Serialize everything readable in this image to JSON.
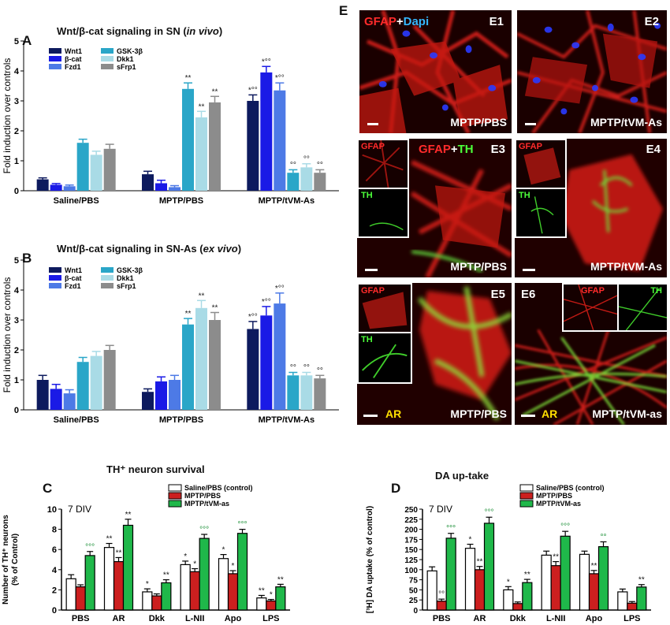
{
  "panels": {
    "A": {
      "letter": "A",
      "title": "Wnt/β-cat signaling in SN (in vivo)",
      "title_main": "Wnt/β-cat signaling in SN (",
      "title_italic": "in vivo",
      "title_end": ")"
    },
    "B": {
      "letter": "B",
      "title_main": "Wnt/β-cat signaling in SN-As (",
      "title_italic": "ex vivo",
      "title_end": ")"
    },
    "C": {
      "letter": "C",
      "title": "TH⁺ neuron survival"
    },
    "D": {
      "letter": "D",
      "title": "DA up-take"
    },
    "E": {
      "letter": "E"
    }
  },
  "colors": {
    "wnt1": "#0d1a5e",
    "bcat": "#1a1ae6",
    "fzd1": "#4d7ae6",
    "gsk3b": "#2aa6c8",
    "dkk1": "#a9dbe6",
    "sfrp1": "#8c8c8c",
    "saline": "#ffffff",
    "mptp_pbs": "#cc1f1f",
    "mptp_tvm": "#1fb84a"
  },
  "chart_data": [
    {
      "id": "A",
      "type": "bar",
      "title": "Wnt/β-cat signaling in SN (in vivo)",
      "ylabel": "Fold induction over controls",
      "ylim": [
        0,
        5
      ],
      "yticks": [
        "0",
        "1",
        "2",
        "3",
        "4",
        "5"
      ],
      "categories": [
        "Saline/PBS",
        "MPTP/PBS",
        "MPTP/tVM-As"
      ],
      "legend": [
        "Wnt1",
        "β-cat",
        "Fzd1",
        "GSK-3β",
        "Dkk1",
        "sFrp1"
      ],
      "series": [
        {
          "name": "Wnt1",
          "values": [
            0.38,
            0.55,
            3.0
          ],
          "errors": [
            0.05,
            0.1,
            0.2
          ],
          "annotations": [
            "",
            "",
            "*°°"
          ]
        },
        {
          "name": "β-cat",
          "values": [
            0.2,
            0.25,
            3.95
          ],
          "errors": [
            0.04,
            0.1,
            0.2
          ],
          "annotations": [
            "",
            "",
            "*°°"
          ]
        },
        {
          "name": "Fzd1",
          "values": [
            0.15,
            0.12,
            3.35
          ],
          "errors": [
            0.04,
            0.05,
            0.25
          ],
          "annotations": [
            "",
            "",
            "*°°"
          ]
        },
        {
          "name": "GSK-3β",
          "values": [
            1.6,
            3.4,
            0.6
          ],
          "errors": [
            0.12,
            0.2,
            0.1
          ],
          "annotations": [
            "",
            "**",
            "°°"
          ]
        },
        {
          "name": "Dkk1",
          "values": [
            1.2,
            2.45,
            0.78
          ],
          "errors": [
            0.12,
            0.2,
            0.12
          ],
          "annotations": [
            "",
            "**",
            "°°"
          ]
        },
        {
          "name": "sFrp1",
          "values": [
            1.4,
            2.95,
            0.6
          ],
          "errors": [
            0.15,
            0.2,
            0.1
          ],
          "annotations": [
            "",
            "**",
            "°°"
          ]
        }
      ]
    },
    {
      "id": "B",
      "type": "bar",
      "title": "Wnt/β-cat signaling in SN-As (ex vivo)",
      "ylabel": "Fold induction over controls",
      "ylim": [
        0,
        5
      ],
      "yticks": [
        "0",
        "1",
        "2",
        "3",
        "4",
        "5"
      ],
      "categories": [
        "Saline/PBS",
        "MPTP/PBS",
        "MPTP/tVM-As"
      ],
      "legend": [
        "Wnt1",
        "β-cat",
        "Fzd1",
        "GSK-3β",
        "Dkk1",
        "sFrp1"
      ],
      "series": [
        {
          "name": "Wnt1",
          "values": [
            1.0,
            0.6,
            2.7
          ],
          "errors": [
            0.15,
            0.1,
            0.25
          ],
          "annotations": [
            "",
            "",
            "*°°"
          ]
        },
        {
          "name": "β-cat",
          "values": [
            0.7,
            0.95,
            3.15
          ],
          "errors": [
            0.15,
            0.15,
            0.3
          ],
          "annotations": [
            "",
            "",
            "*°°"
          ]
        },
        {
          "name": "Fzd1",
          "values": [
            0.55,
            1.0,
            3.55
          ],
          "errors": [
            0.12,
            0.15,
            0.35
          ],
          "annotations": [
            "",
            "",
            "*°°"
          ]
        },
        {
          "name": "GSK-3β",
          "values": [
            1.6,
            2.85,
            1.15
          ],
          "errors": [
            0.15,
            0.2,
            0.1
          ],
          "annotations": [
            "",
            "**",
            "°°"
          ]
        },
        {
          "name": "Dkk1",
          "values": [
            1.8,
            3.4,
            1.15
          ],
          "errors": [
            0.15,
            0.25,
            0.1
          ],
          "annotations": [
            "",
            "**",
            "°°"
          ]
        },
        {
          "name": "sFrp1",
          "values": [
            2.0,
            3.0,
            1.05
          ],
          "errors": [
            0.15,
            0.25,
            0.1
          ],
          "annotations": [
            "",
            "**",
            "°°"
          ]
        }
      ]
    },
    {
      "id": "C",
      "type": "bar",
      "title": "TH⁺ neuron survival",
      "ylabel": "Number of TH⁺ neurons (% of Control)",
      "ylabel_line1": "Number of TH⁺ neurons",
      "ylabel_line2": "(% of Control)",
      "ylim": [
        0,
        10
      ],
      "yticks": [
        "0",
        "2",
        "4",
        "6",
        "8",
        "10"
      ],
      "annotation_text": "7 DIV",
      "categories": [
        "PBS",
        "AR",
        "Dkk",
        "L-NII",
        "Apo",
        "LPS"
      ],
      "legend": [
        "Saline/PBS (control)",
        "MPTP/PBS",
        "MPTP/tVM-as"
      ],
      "series": [
        {
          "name": "Saline/PBS (control)",
          "values": [
            3.1,
            6.2,
            1.8,
            4.5,
            5.1,
            1.2
          ],
          "errors": [
            0.4,
            0.4,
            0.3,
            0.35,
            0.4,
            0.25
          ],
          "annotations": [
            "",
            "**",
            "*",
            "*",
            "*",
            "**"
          ]
        },
        {
          "name": "MPTP/PBS",
          "values": [
            2.3,
            4.8,
            1.4,
            3.8,
            3.6,
            0.9
          ],
          "errors": [
            0.2,
            0.4,
            0.2,
            0.3,
            0.3,
            0.15
          ],
          "annotations": [
            "",
            "**",
            "",
            "*",
            "*",
            "*"
          ]
        },
        {
          "name": "MPTP/tVM-as",
          "values": [
            5.4,
            8.4,
            2.7,
            7.1,
            7.6,
            2.3
          ],
          "errors": [
            0.4,
            0.6,
            0.3,
            0.4,
            0.4,
            0.25
          ],
          "annotations": [
            "°°°",
            "**",
            "**",
            "°°°",
            "°°°",
            "**"
          ]
        }
      ]
    },
    {
      "id": "D",
      "type": "bar",
      "title": "DA up-take",
      "ylabel": "[³H] DA uptake (% of control)",
      "ylim": [
        0,
        250
      ],
      "yticks": [
        "0",
        "25",
        "50",
        "75",
        "100",
        "125",
        "150",
        "175",
        "200",
        "225",
        "250"
      ],
      "annotation_text": "7 DIV",
      "categories": [
        "PBS",
        "AR",
        "Dkk",
        "L-NII",
        "Apo",
        "LPS"
      ],
      "legend": [
        "Saline/PBS (control)",
        "MPTP/PBS",
        "MPTP/tVM-as"
      ],
      "series": [
        {
          "name": "Saline/PBS (control)",
          "values": [
            97,
            153,
            50,
            136,
            138,
            45
          ],
          "errors": [
            10,
            10,
            8,
            10,
            8,
            7
          ],
          "annotations": [
            "",
            "*",
            "*",
            "",
            "",
            ""
          ]
        },
        {
          "name": "MPTP/PBS",
          "values": [
            22,
            100,
            16,
            110,
            90,
            17
          ],
          "errors": [
            5,
            8,
            4,
            10,
            8,
            4
          ],
          "annotations": [
            "°°",
            "**",
            "",
            "**",
            "**",
            ""
          ]
        },
        {
          "name": "MPTP/tVM-as",
          "values": [
            178,
            215,
            68,
            183,
            157,
            57
          ],
          "errors": [
            12,
            15,
            8,
            12,
            12,
            6
          ],
          "annotations": [
            "°°°",
            "°°°",
            "**",
            "°°°",
            "°°",
            "**"
          ]
        }
      ]
    }
  ],
  "micrographs": {
    "E1": {
      "id": "E1",
      "label_stain_a": "GFAP",
      "label_plus": "+",
      "label_stain_b": "Dapi",
      "condition": "MPTP/PBS"
    },
    "E2": {
      "id": "E2",
      "condition": "MPTP/tVM-As"
    },
    "E3": {
      "id": "E3",
      "label_stain_a": "GFAP",
      "label_plus": "+",
      "label_stain_b": "TH",
      "condition": "MPTP/PBS",
      "inset_a": "GFAP",
      "inset_b": "TH"
    },
    "E4": {
      "id": "E4",
      "condition": "MPTP/tVM-As",
      "inset_a": "GFAP",
      "inset_b": "TH"
    },
    "E5": {
      "id": "E5",
      "condition": "MPTP/PBS",
      "inset_a": "GFAP",
      "inset_b": "TH",
      "ar": "AR"
    },
    "E6": {
      "id": "E6",
      "condition": "MPTP/tVM-as",
      "inset_a": "GFAP",
      "inset_b": "TH",
      "ar": "AR"
    }
  }
}
